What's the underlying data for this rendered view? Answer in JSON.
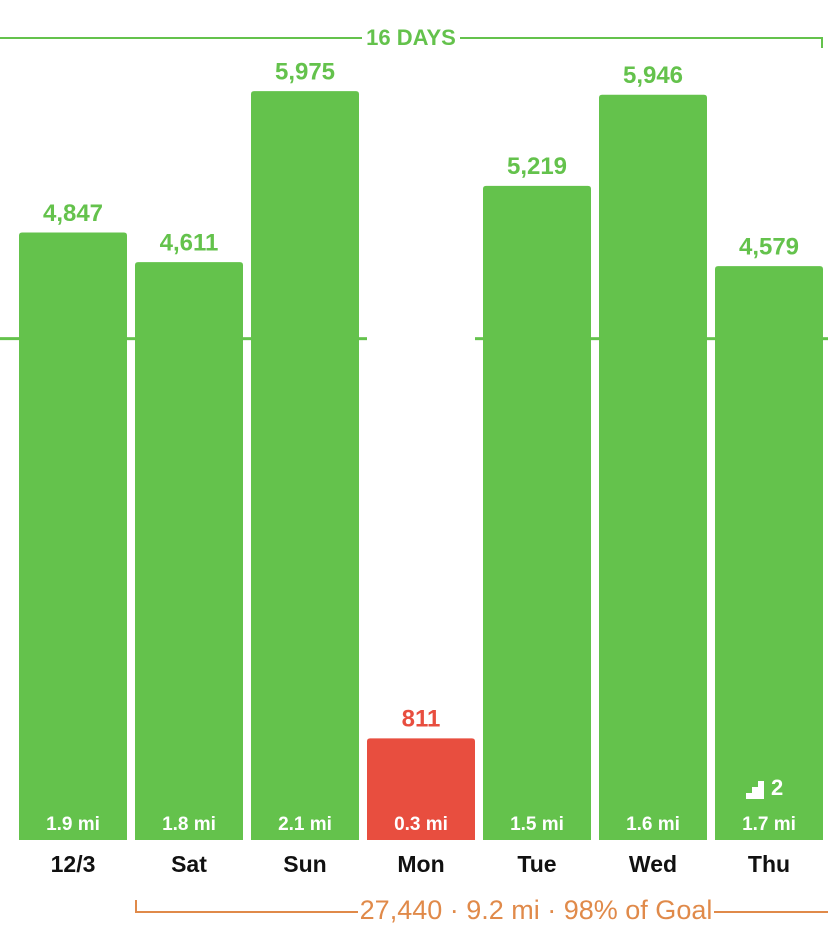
{
  "chart_data": {
    "type": "bar",
    "range_label": "16 DAYS",
    "summary": "27,440 · 9.2 mi · 98% of Goal",
    "categories": [
      "12/3",
      "Sat",
      "Sun",
      "Mon",
      "Tue",
      "Wed",
      "Thu"
    ],
    "values": [
      4847,
      4611,
      5975,
      811,
      5219,
      5946,
      4579
    ],
    "value_labels": [
      "4,847",
      "4,611",
      "5,975",
      "811",
      "5,219",
      "5,946",
      "4,579"
    ],
    "colors": [
      "#64c24c",
      "#64c24c",
      "#64c24c",
      "#e84e3f",
      "#64c24c",
      "#64c24c",
      "#64c24c"
    ],
    "distance_labels": [
      "1.9 mi",
      "1.8 mi",
      "2.1 mi",
      "0.3 mi",
      "1.5 mi",
      "1.6 mi",
      "1.7 mi"
    ],
    "floors": [
      null,
      null,
      null,
      null,
      null,
      null,
      2
    ],
    "goal": 4000,
    "ylim": [
      0,
      6000
    ]
  }
}
